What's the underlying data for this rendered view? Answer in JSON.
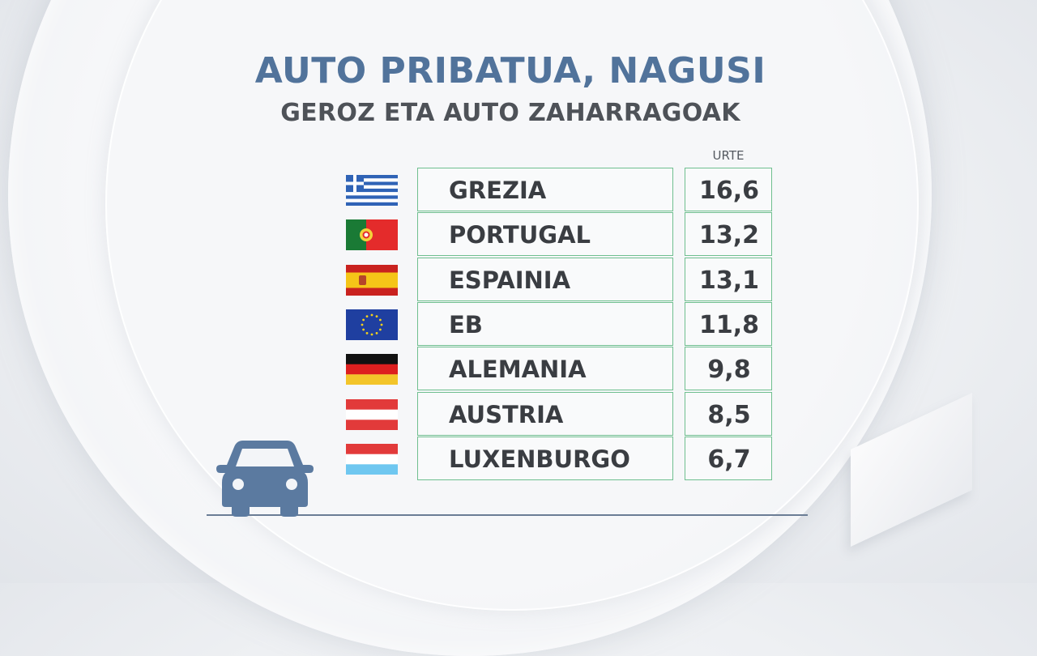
{
  "title": "AUTO PRIBATUA, NAGUSI",
  "subtitle": "GEROZ ETA AUTO ZAHARRAGOAK",
  "colors": {
    "title": "#51739b",
    "border": "#6fbf8f",
    "car": "#5b7aa0"
  },
  "icons": {
    "car": "car-icon"
  },
  "chart_data": {
    "type": "table",
    "title": "AUTO PRIBATUA, NAGUSI",
    "subtitle": "GEROZ ETA AUTO ZAHARRAGOAK",
    "column_header": "URTE",
    "rows": [
      {
        "country": "GREZIA",
        "value": "16,6",
        "flag": "greece"
      },
      {
        "country": "PORTUGAL",
        "value": "13,2",
        "flag": "portugal"
      },
      {
        "country": "ESPAINIA",
        "value": "13,1",
        "flag": "spain"
      },
      {
        "country": "EB",
        "value": "11,8",
        "flag": "eu"
      },
      {
        "country": "ALEMANIA",
        "value": "9,8",
        "flag": "germany"
      },
      {
        "country": "AUSTRIA",
        "value": "8,5",
        "flag": "austria"
      },
      {
        "country": "LUXENBURGO",
        "value": "6,7",
        "flag": "luxembourg"
      }
    ]
  }
}
